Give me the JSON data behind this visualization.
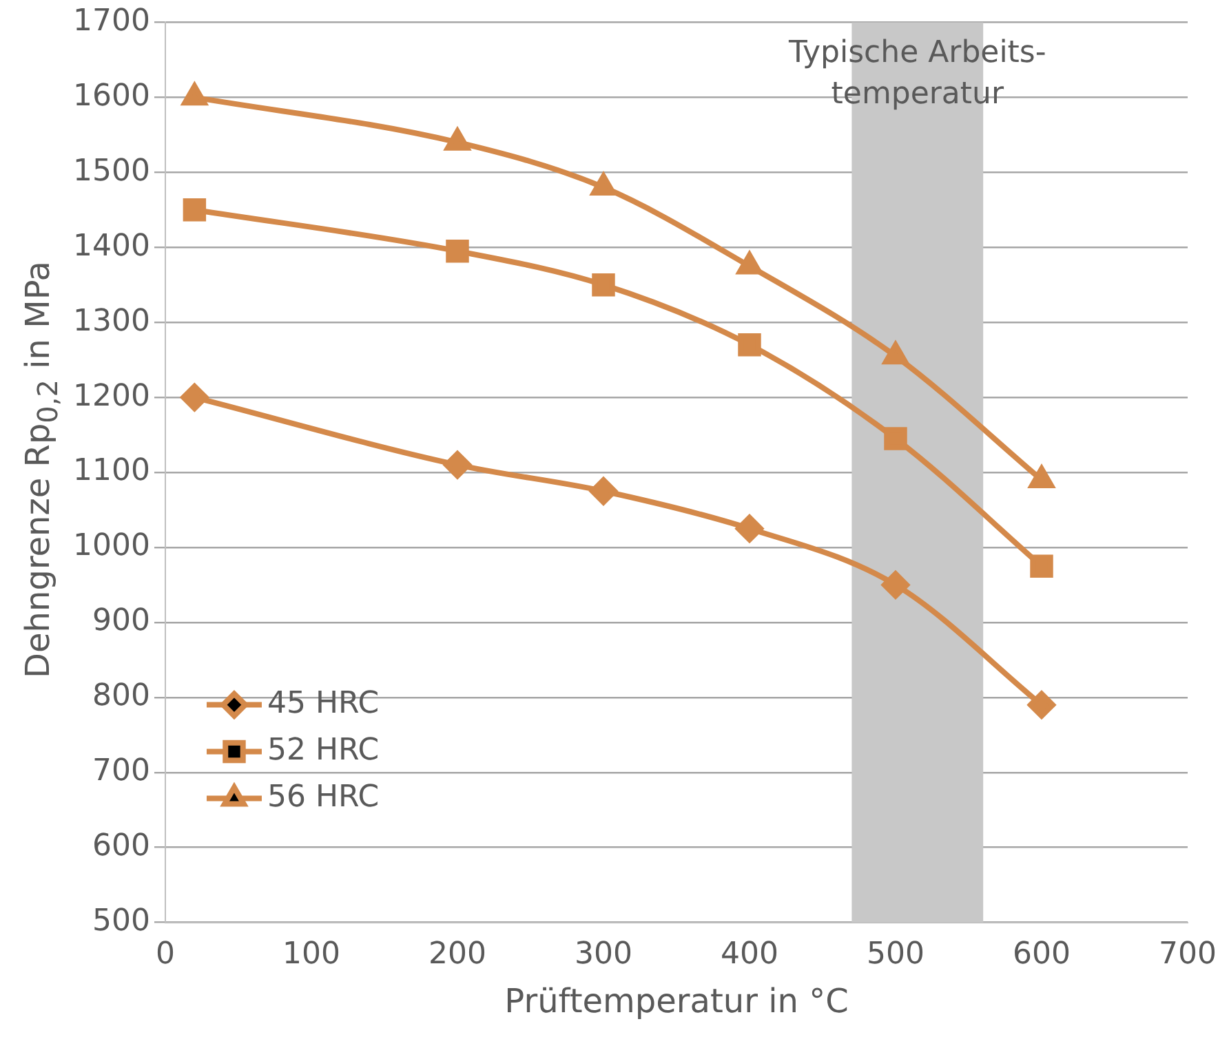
{
  "chart_data": {
    "type": "line",
    "xlabel": "Prüftemperatur in °C",
    "ylabel": "Dehngrenze Rp$_{0,2}$ in MPa",
    "xlim": [
      0,
      700
    ],
    "xticks": [
      0,
      100,
      200,
      300,
      400,
      500,
      600,
      700
    ],
    "ylim": [
      500,
      1700
    ],
    "yticks": [
      500,
      600,
      700,
      800,
      900,
      1000,
      1100,
      1200,
      1300,
      1400,
      1500,
      1600,
      1700
    ],
    "grid": "y",
    "legend": "bottom left",
    "line_style": "solid",
    "bands": [
      {
        "axis": "x",
        "from": 470,
        "to": 560,
        "label": "Typische Arbeits-\ntemperatur",
        "color": "#c8c8c8"
      }
    ],
    "series": [
      {
        "name": "45 HRC",
        "color": "#d4894a",
        "marker": "diamond",
        "x": [
          20,
          200,
          300,
          400,
          500,
          600
        ],
        "values": [
          1200,
          1110,
          1075,
          1025,
          950,
          790
        ]
      },
      {
        "name": "52 HRC",
        "color": "#d4894a",
        "marker": "square",
        "x": [
          20,
          200,
          300,
          400,
          500,
          600
        ],
        "values": [
          1450,
          1395,
          1350,
          1270,
          1145,
          975
        ]
      },
      {
        "name": "56 HRC",
        "color": "#d4894a",
        "marker": "triangle",
        "x": [
          20,
          200,
          300,
          400,
          500,
          600
        ],
        "values": [
          1600,
          1540,
          1480,
          1375,
          1255,
          1090
        ]
      }
    ]
  }
}
